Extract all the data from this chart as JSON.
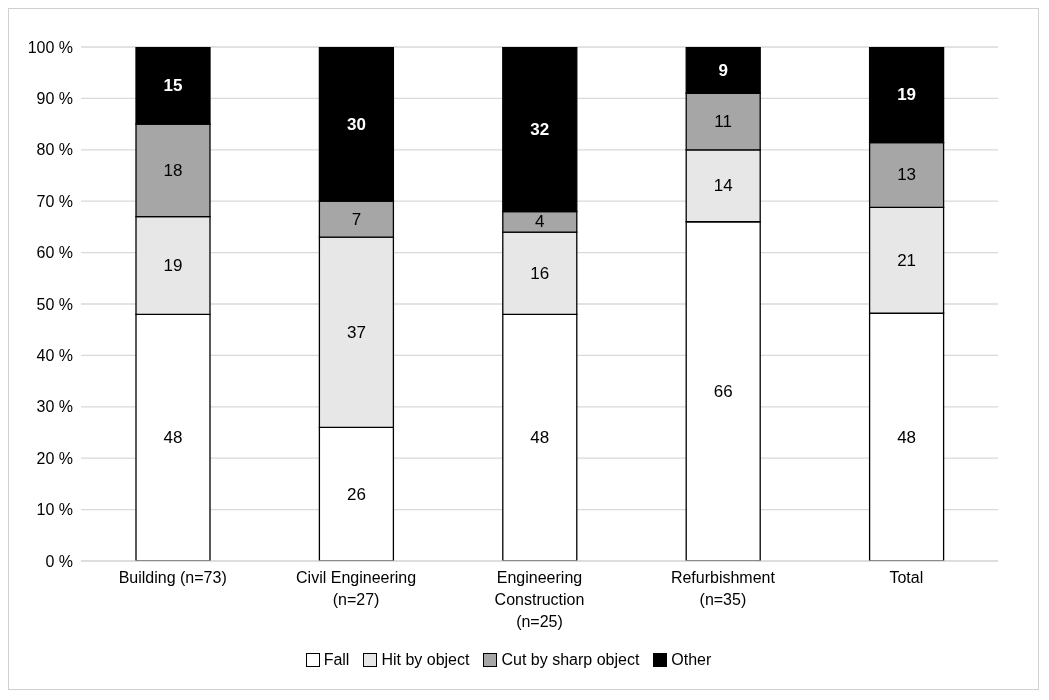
{
  "chart_data": {
    "type": "bar",
    "stacked": true,
    "categories": [
      "Building (n=73)",
      "Civil Engineering (n=27)",
      "Engineering Construction (n=25)",
      "Refurbishment (n=35)",
      "Total"
    ],
    "series": [
      {
        "name": "Fall",
        "color": "#ffffff",
        "values": [
          48,
          26,
          48,
          66,
          48.2
        ],
        "value_labels": [
          "48",
          "26",
          "48",
          "66",
          "48"
        ]
      },
      {
        "name": "Hit by object",
        "color": "#e7e7e7",
        "values": [
          19,
          37,
          16,
          14,
          20.6
        ],
        "value_labels": [
          "19",
          "37",
          "16",
          "14",
          "21"
        ]
      },
      {
        "name": "Cut by sharp object",
        "color": "#a6a6a6",
        "values": [
          18,
          7,
          4,
          11,
          12.6
        ],
        "value_labels": [
          "18",
          "7",
          "4",
          "11",
          "13"
        ]
      },
      {
        "name": "Other",
        "color": "#000000",
        "values": [
          15,
          30,
          32,
          9,
          18.6
        ],
        "value_labels": [
          "15",
          "30",
          "32",
          "9",
          "19"
        ]
      }
    ],
    "ylim": [
      0,
      100
    ],
    "yticks": [
      {
        "value": 0,
        "label": "0 %"
      },
      {
        "value": 10,
        "label": "10 %"
      },
      {
        "value": 20,
        "label": "20 %"
      },
      {
        "value": 30,
        "label": "30 %"
      },
      {
        "value": 40,
        "label": "40 %"
      },
      {
        "value": 50,
        "label": "50 %"
      },
      {
        "value": 60,
        "label": "60 %"
      },
      {
        "value": 70,
        "label": "70 %"
      },
      {
        "value": 80,
        "label": "80 %"
      },
      {
        "value": 90,
        "label": "90 %"
      },
      {
        "value": 100,
        "label": "100 %"
      }
    ],
    "grid": "y",
    "legend": "bottom"
  }
}
